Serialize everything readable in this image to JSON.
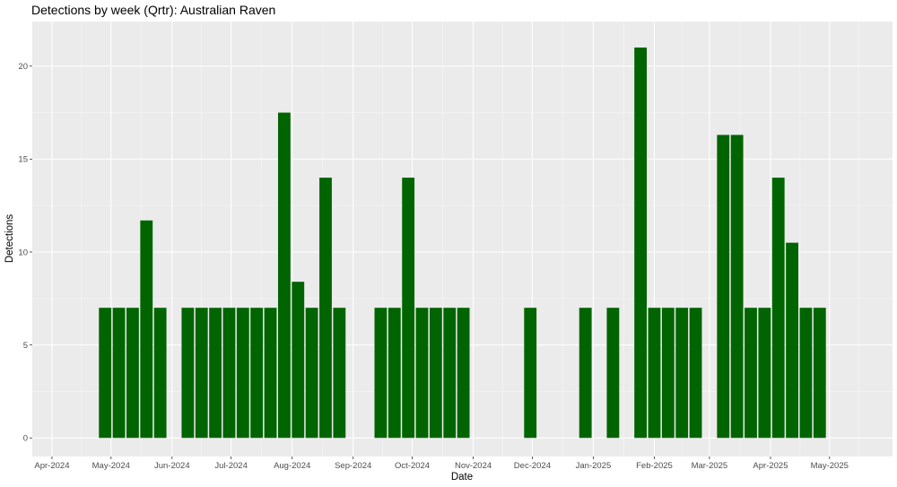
{
  "chart_data": {
    "type": "bar",
    "title": "Detections by week (Qrtr): Australian Raven",
    "xlabel": "Date",
    "ylabel": "Detections",
    "ylim": [
      -1,
      22.4
    ],
    "xlim": [
      "2024-03-22",
      "2025-06-02"
    ],
    "grid": true,
    "bar_color": "#006400",
    "panel_color": "#ebebeb",
    "y_ticks": [
      0,
      5,
      10,
      15,
      20
    ],
    "x_ticks": [
      {
        "date": "2024-04-01",
        "label": "Apr-2024"
      },
      {
        "date": "2024-05-01",
        "label": "May-2024"
      },
      {
        "date": "2024-06-01",
        "label": "Jun-2024"
      },
      {
        "date": "2024-07-01",
        "label": "Jul-2024"
      },
      {
        "date": "2024-08-01",
        "label": "Aug-2024"
      },
      {
        "date": "2024-09-01",
        "label": "Sep-2024"
      },
      {
        "date": "2024-10-01",
        "label": "Oct-2024"
      },
      {
        "date": "2024-11-01",
        "label": "Nov-2024"
      },
      {
        "date": "2024-12-01",
        "label": "Dec-2024"
      },
      {
        "date": "2025-01-01",
        "label": "Jan-2025"
      },
      {
        "date": "2025-02-01",
        "label": "Feb-2025"
      },
      {
        "date": "2025-03-01",
        "label": "Mar-2025"
      },
      {
        "date": "2025-04-01",
        "label": "Apr-2025"
      },
      {
        "date": "2025-05-01",
        "label": "May-2025"
      }
    ],
    "x": [
      "2024-04-28",
      "2024-05-05",
      "2024-05-12",
      "2024-05-19",
      "2024-05-26",
      "2024-06-09",
      "2024-06-16",
      "2024-06-23",
      "2024-06-30",
      "2024-07-07",
      "2024-07-14",
      "2024-07-21",
      "2024-07-28",
      "2024-08-04",
      "2024-08-11",
      "2024-08-18",
      "2024-08-25",
      "2024-09-15",
      "2024-09-22",
      "2024-09-29",
      "2024-10-06",
      "2024-10-13",
      "2024-10-20",
      "2024-10-27",
      "2024-11-30",
      "2024-12-28",
      "2025-01-11",
      "2025-01-25",
      "2025-02-01",
      "2025-02-08",
      "2025-02-15",
      "2025-02-22",
      "2025-03-08",
      "2025-03-15",
      "2025-03-22",
      "2025-03-29",
      "2025-04-05",
      "2025-04-12",
      "2025-04-19",
      "2025-04-26"
    ],
    "values": [
      7,
      7,
      7,
      11.7,
      7,
      7,
      7,
      7,
      7,
      7,
      7,
      7,
      17.5,
      8.4,
      7,
      14,
      7,
      7,
      7,
      14,
      7,
      7,
      7,
      7,
      7,
      7,
      7,
      21,
      7,
      7,
      7,
      7,
      16.3,
      16.3,
      7,
      7,
      14,
      10.5,
      7,
      7
    ]
  }
}
